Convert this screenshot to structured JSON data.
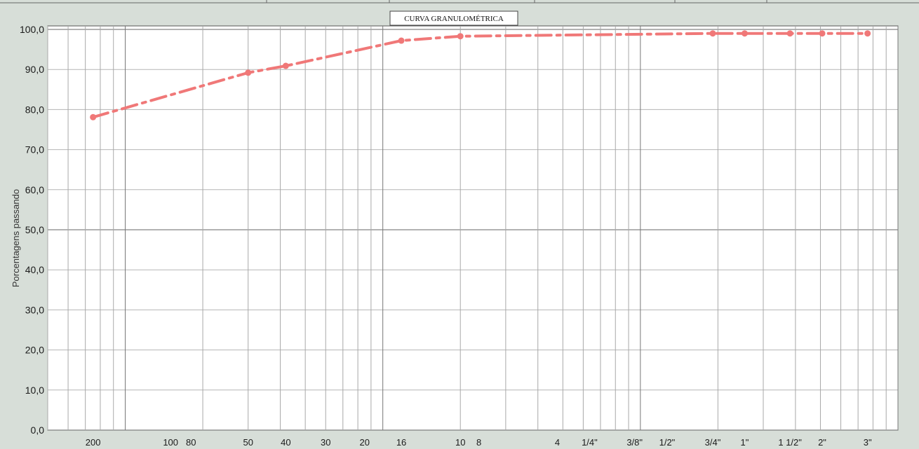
{
  "chart_data": {
    "type": "line",
    "title": "CURVA GRANULOMÉTRICA",
    "ylabel": "Porcentagens passando",
    "xlabel": "",
    "ylim": [
      0,
      100
    ],
    "yticks": [
      "0,0",
      "10,0",
      "20,0",
      "30,0",
      "40,0",
      "50,0",
      "60,0",
      "70,0",
      "80,0",
      "90,0",
      "100,0"
    ],
    "x_scale": "log",
    "xlim_mm": [
      0.05,
      100
    ],
    "grid": true,
    "legend": "none",
    "line_color": "#f07878",
    "line_style": "dash-dot",
    "sieve_labels": [
      {
        "label": "200",
        "mm": 0.075
      },
      {
        "label": "100",
        "mm": 0.15
      },
      {
        "label": "80",
        "mm": 0.18
      },
      {
        "label": "50",
        "mm": 0.3
      },
      {
        "label": "40",
        "mm": 0.42
      },
      {
        "label": "30",
        "mm": 0.6
      },
      {
        "label": "20",
        "mm": 0.85
      },
      {
        "label": "16",
        "mm": 1.18
      },
      {
        "label": "10",
        "mm": 2.0
      },
      {
        "label": "8",
        "mm": 2.36
      },
      {
        "label": "4",
        "mm": 4.76
      },
      {
        "label": "1/4\"",
        "mm": 6.35
      },
      {
        "label": "1/2\"",
        "mm": 12.7
      },
      {
        "label": "3/8\"",
        "mm": 9.5
      },
      {
        "label": "3/4\"",
        "mm": 19.1
      },
      {
        "label": "1\"",
        "mm": 25.4
      },
      {
        "label": "1 1/2\"",
        "mm": 38.1
      },
      {
        "label": "2\"",
        "mm": 50.8
      },
      {
        "label": "3\"",
        "mm": 76.2
      }
    ],
    "series": [
      {
        "points": [
          {
            "x": 0.075,
            "y": 78.1
          },
          {
            "x": 0.3,
            "y": 89.2
          },
          {
            "x": 0.42,
            "y": 90.9
          },
          {
            "x": 1.18,
            "y": 97.2
          },
          {
            "x": 2.0,
            "y": 98.3
          },
          {
            "x": 19.1,
            "y": 99.0
          },
          {
            "x": 25.4,
            "y": 99.0
          },
          {
            "x": 38.1,
            "y": 99.0
          },
          {
            "x": 50.8,
            "y": 99.0
          },
          {
            "x": 76.2,
            "y": 99.0
          }
        ]
      }
    ]
  }
}
